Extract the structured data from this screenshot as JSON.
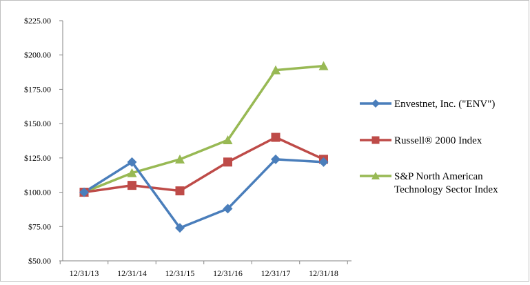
{
  "chart_data": {
    "type": "line",
    "title": "",
    "xlabel": "",
    "ylabel": "",
    "categories": [
      "12/31/13",
      "12/31/14",
      "12/31/15",
      "12/31/16",
      "12/31/17",
      "12/31/18"
    ],
    "y_ticks": [
      "$50.00",
      "$75.00",
      "$100.00",
      "$125.00",
      "$150.00",
      "$175.00",
      "$200.00",
      "$225.00"
    ],
    "ylim": [
      50,
      225
    ],
    "grid": false,
    "legend_position": "right",
    "series": [
      {
        "name_lines": [
          "Envestnet, Inc.  (\"ENV\")"
        ],
        "values": [
          100,
          122,
          74,
          88,
          124,
          122
        ],
        "color": "#4a7ebb",
        "marker": "diamond"
      },
      {
        "name_lines": [
          "Russell® 2000 Index"
        ],
        "values": [
          100,
          105,
          101,
          122,
          140,
          124
        ],
        "color": "#be4b48",
        "marker": "square"
      },
      {
        "name_lines": [
          "S&P North American",
          "Technology Sector Index"
        ],
        "values": [
          100,
          114,
          124,
          138,
          189,
          192
        ],
        "color": "#98b954",
        "marker": "triangle"
      }
    ]
  }
}
